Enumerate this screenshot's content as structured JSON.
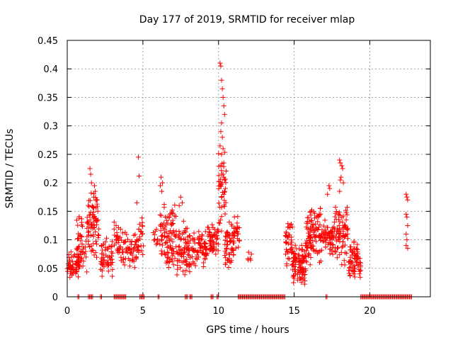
{
  "chart_data": {
    "type": "scatter",
    "title": "Day 177 of 2019, SRMTID for receiver mlap",
    "xlabel": "GPS time / hours",
    "ylabel": "SRMTID / TECUs",
    "xlim": [
      0,
      24
    ],
    "ylim": [
      0,
      0.45
    ],
    "xticks": [
      0,
      5,
      10,
      15,
      20
    ],
    "yticks": [
      0,
      0.05,
      0.1,
      0.15,
      0.2,
      0.25,
      0.3,
      0.35,
      0.4,
      0.45
    ],
    "xtick_labels": [
      "0",
      "5",
      "10",
      "15",
      "20"
    ],
    "ytick_labels": [
      "0",
      "0.05",
      "0.1",
      "0.15",
      "0.2",
      "0.25",
      "0.3",
      "0.35",
      "0.4",
      "0.45"
    ],
    "grid": true,
    "marker": "+",
    "color": "#ff0000",
    "clusters": [
      {
        "x": [
          0.0,
          0.8
        ],
        "y": [
          0.03,
          0.08
        ],
        "n": 60
      },
      {
        "x": [
          0.6,
          1.3
        ],
        "y": [
          0.04,
          0.15
        ],
        "n": 45
      },
      {
        "x": [
          1.3,
          2.1
        ],
        "y": [
          0.06,
          0.19
        ],
        "n": 80
      },
      {
        "x": [
          2.2,
          3.0
        ],
        "y": [
          0.03,
          0.11
        ],
        "n": 55
      },
      {
        "x": [
          3.1,
          3.5
        ],
        "y": [
          0.06,
          0.14
        ],
        "n": 25
      },
      {
        "x": [
          3.5,
          4.6
        ],
        "y": [
          0.04,
          0.12
        ],
        "n": 60
      },
      {
        "x": [
          4.6,
          5.1
        ],
        "y": [
          0.07,
          0.17
        ],
        "n": 25
      },
      {
        "x": [
          5.6,
          6.0
        ],
        "y": [
          0.08,
          0.12
        ],
        "n": 10
      },
      {
        "x": [
          6.1,
          7.2
        ],
        "y": [
          0.04,
          0.17
        ],
        "n": 95
      },
      {
        "x": [
          7.2,
          8.2
        ],
        "y": [
          0.03,
          0.14
        ],
        "n": 80
      },
      {
        "x": [
          8.2,
          9.2
        ],
        "y": [
          0.05,
          0.12
        ],
        "n": 70
      },
      {
        "x": [
          9.2,
          10.0
        ],
        "y": [
          0.07,
          0.13
        ],
        "n": 55
      },
      {
        "x": [
          10.0,
          10.5
        ],
        "y": [
          0.1,
          0.26
        ],
        "n": 40
      },
      {
        "x": [
          10.4,
          11.0
        ],
        "y": [
          0.04,
          0.14
        ],
        "n": 55
      },
      {
        "x": [
          11.0,
          11.4
        ],
        "y": [
          0.07,
          0.16
        ],
        "n": 25
      },
      {
        "x": [
          11.9,
          12.2
        ],
        "y": [
          0.06,
          0.08
        ],
        "n": 6
      },
      {
        "x": [
          14.4,
          14.9
        ],
        "y": [
          0.04,
          0.14
        ],
        "n": 40
      },
      {
        "x": [
          14.9,
          15.8
        ],
        "y": [
          0.02,
          0.1
        ],
        "n": 100
      },
      {
        "x": [
          15.8,
          16.8
        ],
        "y": [
          0.04,
          0.17
        ],
        "n": 100
      },
      {
        "x": [
          16.8,
          17.6
        ],
        "y": [
          0.07,
          0.14
        ],
        "n": 60
      },
      {
        "x": [
          17.6,
          18.6
        ],
        "y": [
          0.05,
          0.17
        ],
        "n": 80
      },
      {
        "x": [
          18.6,
          19.4
        ],
        "y": [
          0.03,
          0.1
        ],
        "n": 70
      }
    ],
    "points": [
      [
        1.5,
        0.225
      ],
      [
        1.55,
        0.215
      ],
      [
        1.6,
        0.2
      ],
      [
        1.8,
        0.195
      ],
      [
        1.85,
        0.185
      ],
      [
        1.75,
        0.175
      ],
      [
        4.7,
        0.245
      ],
      [
        4.75,
        0.212
      ],
      [
        4.6,
        0.165
      ],
      [
        6.2,
        0.21
      ],
      [
        6.3,
        0.2
      ],
      [
        6.15,
        0.195
      ],
      [
        6.25,
        0.185
      ],
      [
        7.5,
        0.175
      ],
      [
        7.6,
        0.165
      ],
      [
        7.4,
        0.16
      ],
      [
        10.1,
        0.41
      ],
      [
        10.15,
        0.405
      ],
      [
        10.2,
        0.38
      ],
      [
        10.25,
        0.365
      ],
      [
        10.3,
        0.35
      ],
      [
        10.35,
        0.335
      ],
      [
        10.4,
        0.32
      ],
      [
        10.2,
        0.305
      ],
      [
        10.15,
        0.29
      ],
      [
        10.25,
        0.28
      ],
      [
        10.3,
        0.26
      ],
      [
        10.1,
        0.265
      ],
      [
        10.2,
        0.25
      ],
      [
        10.35,
        0.235
      ],
      [
        10.15,
        0.23
      ],
      [
        10.3,
        0.215
      ],
      [
        10.4,
        0.205
      ],
      [
        10.25,
        0.2
      ],
      [
        10.45,
        0.19
      ],
      [
        10.35,
        0.18
      ],
      [
        17.3,
        0.195
      ],
      [
        17.35,
        0.19
      ],
      [
        17.2,
        0.18
      ],
      [
        18.0,
        0.24
      ],
      [
        18.05,
        0.235
      ],
      [
        18.15,
        0.23
      ],
      [
        18.2,
        0.225
      ],
      [
        18.1,
        0.21
      ],
      [
        18.05,
        0.205
      ],
      [
        18.25,
        0.2
      ],
      [
        18.0,
        0.185
      ],
      [
        22.4,
        0.18
      ],
      [
        22.45,
        0.175
      ],
      [
        22.5,
        0.17
      ],
      [
        22.4,
        0.145
      ],
      [
        22.45,
        0.14
      ],
      [
        22.5,
        0.125
      ],
      [
        22.4,
        0.11
      ],
      [
        22.45,
        0.1
      ],
      [
        22.4,
        0.09
      ],
      [
        22.5,
        0.085
      ]
    ],
    "zero_segments": [
      [
        0.7,
        0.8
      ],
      [
        1.4,
        1.7
      ],
      [
        2.2,
        2.3
      ],
      [
        3.1,
        3.9
      ],
      [
        4.8,
        5.1
      ],
      [
        6.0,
        6.1
      ],
      [
        7.8,
        8.0
      ],
      [
        8.1,
        8.3
      ],
      [
        9.5,
        9.7
      ],
      [
        9.9,
        10.0
      ],
      [
        11.3,
        14.4
      ],
      [
        17.1,
        17.2
      ],
      [
        19.4,
        22.8
      ]
    ]
  }
}
